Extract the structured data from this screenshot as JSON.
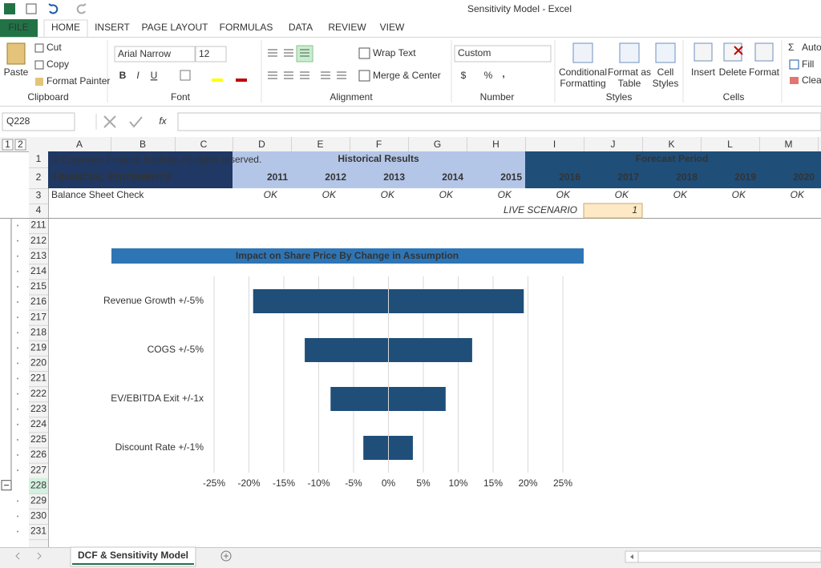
{
  "window": {
    "title": "Sensitivity Model - Excel"
  },
  "ribbon": {
    "tabs": [
      "FILE",
      "HOME",
      "INSERT",
      "PAGE LAYOUT",
      "FORMULAS",
      "DATA",
      "REVIEW",
      "VIEW"
    ],
    "clipboard": {
      "paste": "Paste",
      "cut": "Cut",
      "copy": "Copy",
      "format_painter": "Format Painter",
      "label": "Clipboard"
    },
    "font": {
      "name": "Arial Narrow",
      "size": "12",
      "bold": "B",
      "italic": "I",
      "underline": "U",
      "label": "Font"
    },
    "alignment": {
      "wrap": "Wrap Text",
      "merge": "Merge & Center",
      "label": "Alignment"
    },
    "number": {
      "format": "Custom",
      "currency": "$",
      "percent": "%",
      "comma": ",",
      "label": "Number"
    },
    "styles": {
      "conditional": [
        "Conditional",
        "Formatting"
      ],
      "format_table": [
        "Format as",
        "Table"
      ],
      "cell_styles": [
        "Cell",
        "Styles"
      ],
      "label": "Styles"
    },
    "cells": {
      "insert": "Insert",
      "delete": "Delete",
      "format": "Format",
      "label": "Cells"
    },
    "editing": {
      "autosum": "Auto",
      "fill": "Fill",
      "clear": "Clear"
    }
  },
  "formula_bar": {
    "name_box": "Q228",
    "fx": "fx"
  },
  "outline_levels": [
    "1",
    "2"
  ],
  "columns": [
    "A",
    "B",
    "C",
    "D",
    "E",
    "F",
    "G",
    "H",
    "I",
    "J",
    "K",
    "L",
    "M"
  ],
  "rows": [
    "1",
    "2",
    "3",
    "4",
    "211",
    "212",
    "213",
    "214",
    "215",
    "216",
    "217",
    "218",
    "219",
    "220",
    "221",
    "222",
    "223",
    "224",
    "225",
    "226",
    "227",
    "228",
    "229",
    "230",
    "231"
  ],
  "sheet": {
    "copyright": "© Corporate Finance Institute. All rights reserved.",
    "title": "FINANCIAL STATEMENTS",
    "historical": "Historical Results",
    "forecast": "Forecast Period",
    "years": [
      "2011",
      "2012",
      "2013",
      "2014",
      "2015",
      "2016",
      "2017",
      "2018",
      "2019",
      "2020"
    ],
    "check_label": "Balance Sheet Check",
    "checks": [
      "OK",
      "OK",
      "OK",
      "OK",
      "OK",
      "OK",
      "OK",
      "OK",
      "OK",
      "OK"
    ],
    "scenario_label": "LIVE SCENARIO",
    "scenario_value": "1"
  },
  "chart_data": {
    "type": "bar",
    "orientation": "horizontal",
    "title": "Impact on Share Price By Change in Assumption",
    "categories": [
      "Revenue Growth +/-5%",
      "COGS +/-5%",
      "EV/EBITDA Exit +/-1x",
      "Discount Rate +/-1%"
    ],
    "series": [
      {
        "color": "#1f4e79",
        "values": [
          -19.4,
          -12,
          -8.3,
          -3.6
        ]
      },
      {
        "color": "#1f4e79",
        "values": [
          19.4,
          12,
          8.2,
          3.5
        ]
      }
    ],
    "xlim": [
      -25,
      25
    ],
    "xticks": [
      {
        "value": -25,
        "label": "-25%"
      },
      {
        "value": -20,
        "label": "-20%"
      },
      {
        "value": -15,
        "label": "-15%"
      },
      {
        "value": -10,
        "label": "-10%"
      },
      {
        "value": -5,
        "label": "-5%"
      },
      {
        "value": 0,
        "label": "0%"
      },
      {
        "value": 5,
        "label": "5%"
      },
      {
        "value": 10,
        "label": "10%"
      },
      {
        "value": 15,
        "label": "15%"
      },
      {
        "value": 20,
        "label": "20%"
      },
      {
        "value": 25,
        "label": "25%"
      }
    ],
    "grid": true
  },
  "tabs": {
    "sheet": "DCF & Sensitivity Model"
  }
}
